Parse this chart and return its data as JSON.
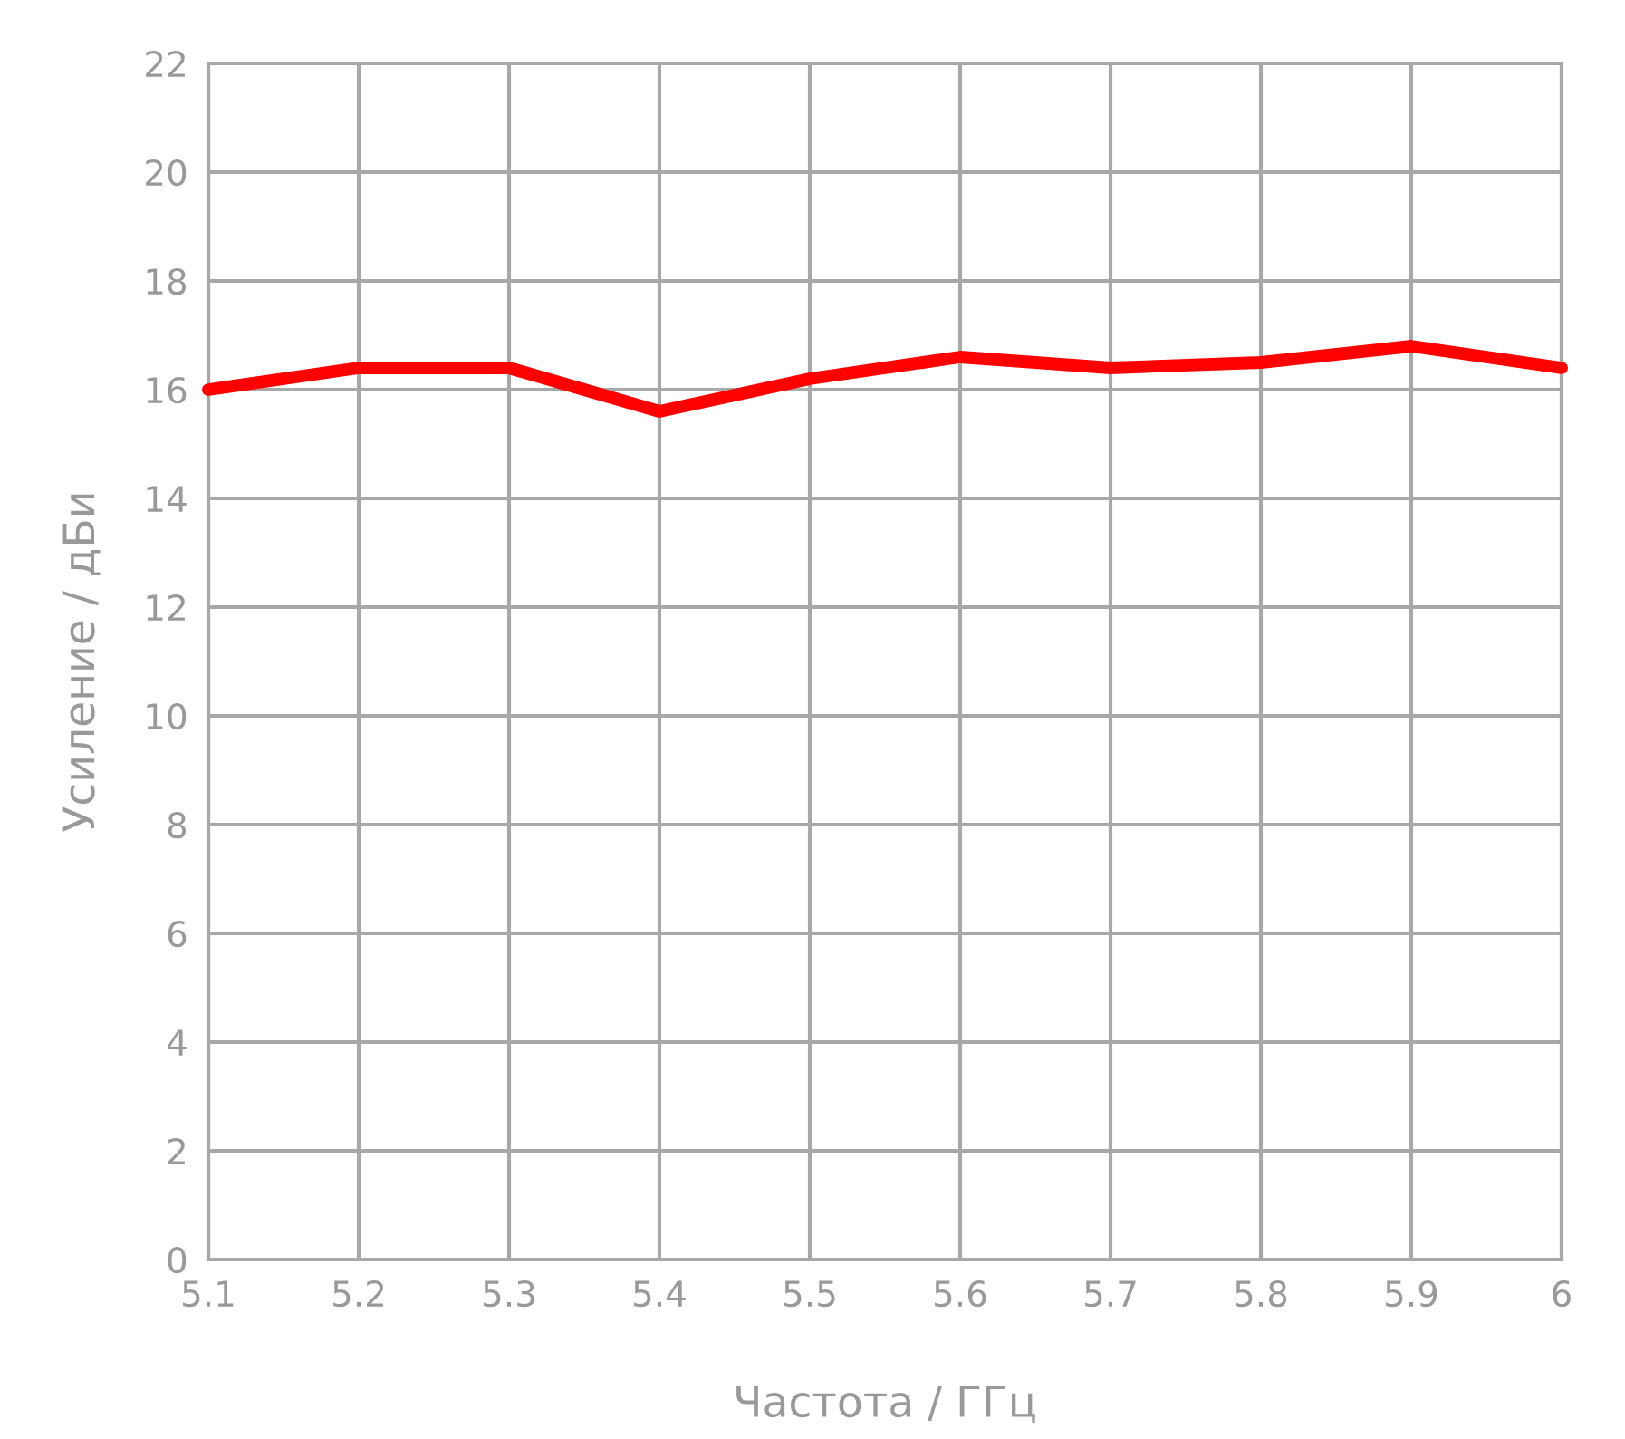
{
  "chart_data": {
    "type": "line",
    "xlabel": "Частота / ГГц",
    "ylabel": "Усиление / дБи",
    "x": [
      5.1,
      5.2,
      5.3,
      5.4,
      5.5,
      5.6,
      5.7,
      5.8,
      5.9,
      6
    ],
    "series": [
      {
        "color": "#ff0000",
        "values": [
          16.0,
          16.4,
          16.4,
          15.6,
          16.2,
          16.6,
          16.4,
          16.5,
          16.8,
          16.4
        ]
      }
    ],
    "xlim": [
      5.1,
      6
    ],
    "xticks": [
      5.1,
      5.2,
      5.3,
      5.4,
      5.5,
      5.6,
      5.7,
      5.8,
      5.9,
      6
    ],
    "ylim": [
      0,
      22
    ],
    "yticks": [
      0,
      2,
      4,
      6,
      8,
      10,
      12,
      14,
      16,
      18,
      20,
      22
    ],
    "grid": true,
    "marker": "none",
    "line_style": "solid"
  }
}
